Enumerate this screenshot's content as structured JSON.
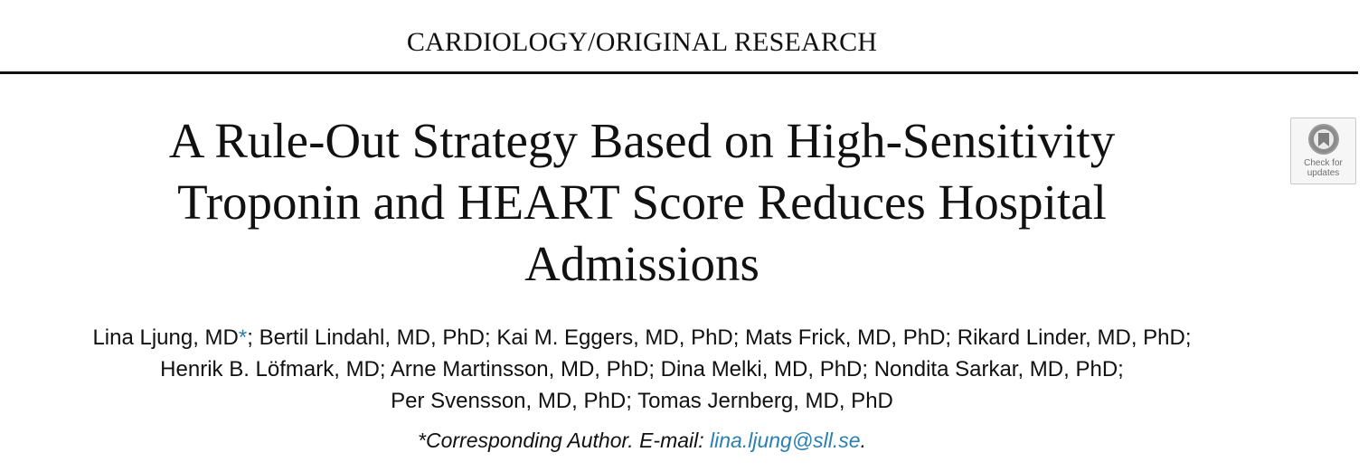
{
  "header": {
    "section_label": "CARDIOLOGY/ORIGINAL RESEARCH"
  },
  "article": {
    "title_lines": [
      "A Rule-Out Strategy Based on High-Sensitivity",
      "Troponin and HEART Score Reduces Hospital",
      "Admissions"
    ],
    "authors": {
      "line1_name": "Lina Ljung, MD",
      "line1_marker": "*",
      "line1_rest": "; Bertil Lindahl, MD, PhD; Kai M. Eggers, MD, PhD; Mats Frick, MD, PhD; Rikard Linder, MD, PhD;",
      "line2": "Henrik B. Löfmark, MD; Arne Martinsson, MD, PhD; Dina Melki, MD, PhD; Nondita Sarkar, MD, PhD;",
      "line3": "Per Svensson, MD, PhD; Tomas Jernberg, MD, PhD"
    },
    "corresponding": {
      "prefix": "*Corresponding Author. E-mail: ",
      "email": "lina.ljung@sll.se",
      "suffix": "."
    }
  },
  "badge": {
    "icon": "check-for-updates-icon",
    "line1": "Check for",
    "line2": "updates"
  },
  "colors": {
    "text": "#111111",
    "link": "#2a7fb4",
    "badge_bg": "#f6f6f6"
  }
}
